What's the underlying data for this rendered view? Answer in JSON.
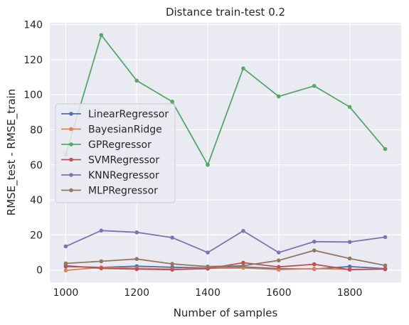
{
  "chart_data": {
    "type": "line",
    "title": "Distance train-test 0.2",
    "xlabel": "Number of samples",
    "ylabel": "RMSE_test - RMSE_train",
    "xlim": [
      955,
      1945
    ],
    "ylim": [
      -7,
      141
    ],
    "xticks": [
      1000,
      1200,
      1400,
      1600,
      1800
    ],
    "yticks": [
      0,
      20,
      40,
      60,
      80,
      100,
      120,
      140
    ],
    "grid": true,
    "legend_position": "center-left",
    "x": [
      1000,
      1100,
      1200,
      1300,
      1400,
      1500,
      1600,
      1700,
      1800,
      1900
    ],
    "series": [
      {
        "name": "LinearRegressor",
        "color": "#4c72b0",
        "values": [
          2.0,
          1.5,
          2.2,
          1.6,
          1.2,
          1.8,
          0.8,
          0.6,
          2.0,
          0.8
        ]
      },
      {
        "name": "BayesianRidge",
        "color": "#dd8452",
        "values": [
          -0.2,
          1.5,
          1.0,
          0.5,
          1.0,
          1.2,
          0.2,
          0.8,
          0.4,
          0.5
        ]
      },
      {
        "name": "GPRegressor",
        "color": "#55a868",
        "values": [
          66,
          134,
          108,
          96,
          60,
          115,
          99,
          105,
          93,
          69
        ]
      },
      {
        "name": "SVMRegressor",
        "color": "#c44e52",
        "values": [
          2.5,
          1.0,
          0.5,
          0.2,
          0.8,
          4.2,
          1.8,
          3.3,
          0.2,
          0.5
        ]
      },
      {
        "name": "KNNRegressor",
        "color": "#8172b3",
        "values": [
          13.5,
          22.5,
          21.5,
          18.5,
          10.0,
          22.3,
          10.0,
          16.2,
          16.0,
          18.8
        ]
      },
      {
        "name": "MLPRegressor",
        "color": "#937860",
        "values": [
          3.8,
          5.0,
          6.3,
          3.5,
          2.0,
          2.5,
          5.5,
          11.2,
          6.6,
          2.6
        ]
      }
    ]
  }
}
